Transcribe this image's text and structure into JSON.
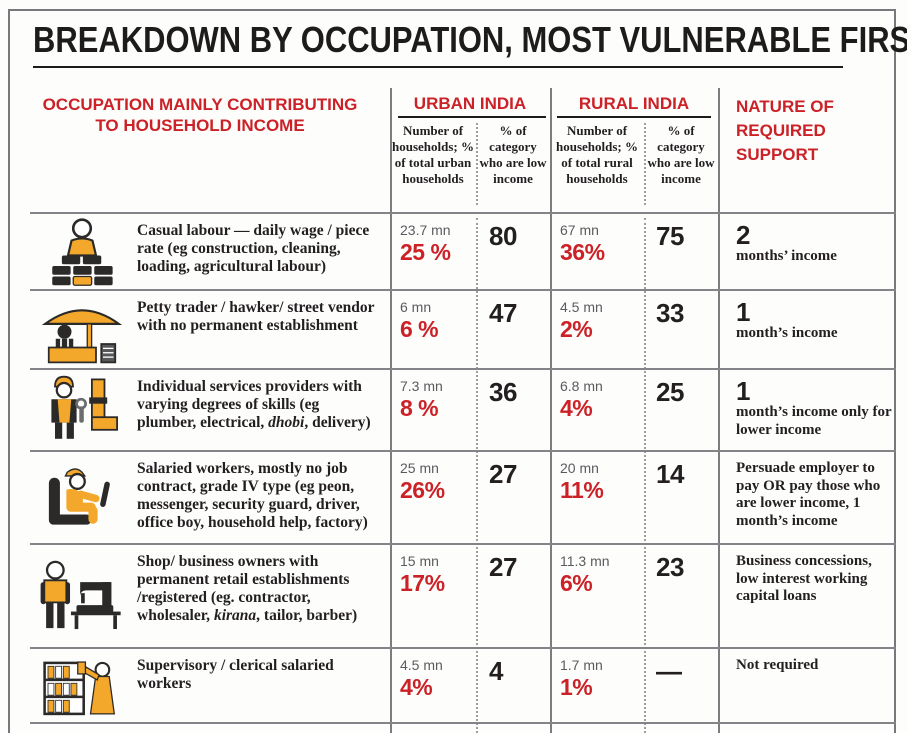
{
  "title": "BREAKDOWN BY OCCUPATION, MOST VULNERABLE FIRST",
  "colors": {
    "accent_red": "#cb2127",
    "icon_orange": "#f3a72b",
    "ink": "#231f20",
    "muted_gray": "#5a5b5e",
    "grid_gray": "#838487"
  },
  "columns": {
    "occupation": "OCCUPATION MAINLY CONTRIBUTING TO HOUSEHOLD INCOME",
    "urban": {
      "label": "URBAN INDIA",
      "households": "Number of households; % of total urban households",
      "low_income": "% of category who are low income"
    },
    "rural": {
      "label": "RURAL INDIA",
      "households": "Number of households; % of total rural households",
      "low_income": "% of category who are low income"
    },
    "support": "NATURE OF REQUIRED SUPPORT"
  },
  "rows": [
    {
      "icon": "construction-worker-icon",
      "occupation": [
        {
          "t": "Casual labour — daily wage / piece rate (eg construction, cleaning, loading, agricultural labour)"
        }
      ],
      "urban": {
        "households": "23.7 mn",
        "pct": "25 %",
        "low_income": "80"
      },
      "rural": {
        "households": "67 mn",
        "pct": "36%",
        "low_income": "75"
      },
      "support": {
        "big": "2",
        "text": "months’ income"
      }
    },
    {
      "icon": "street-vendor-icon",
      "occupation": [
        {
          "t": "Petty trader / hawker/ street vendor with no permanent establishment"
        }
      ],
      "urban": {
        "households": "6 mn",
        "pct": "6 %",
        "low_income": "47"
      },
      "rural": {
        "households": "4.5 mn",
        "pct": "2%",
        "low_income": "33"
      },
      "support": {
        "big": "1",
        "text": "month’s income"
      }
    },
    {
      "icon": "plumber-icon",
      "occupation": [
        {
          "t": "Individual services providers with varying degrees of skills (eg plumber, electrical, "
        },
        {
          "t": "dhobi",
          "i": true
        },
        {
          "t": ", delivery)"
        }
      ],
      "urban": {
        "households": "7.3 mn",
        "pct": "8 %",
        "low_income": "36"
      },
      "rural": {
        "households": "6.8 mn",
        "pct": "4%",
        "low_income": "25"
      },
      "support": {
        "big": "1",
        "text": "month’s income only for lower income"
      }
    },
    {
      "icon": "driver-icon",
      "occupation": [
        {
          "t": "Salaried workers, mostly no job contract, grade IV type (eg peon, messenger, security guard, driver, office boy, household help, factory)"
        }
      ],
      "urban": {
        "households": "25 mn",
        "pct": "26%",
        "low_income": "27"
      },
      "rural": {
        "households": "20 mn",
        "pct": "11%",
        "low_income": "14"
      },
      "support": {
        "big": "",
        "text": "Persuade employer to pay OR pay those who are lower income, 1 month’s income"
      }
    },
    {
      "icon": "tailor-icon",
      "occupation": [
        {
          "t": "Shop/ business owners with permanent retail establishments /registered (eg. contractor, wholesaler, "
        },
        {
          "t": "kirana",
          "i": true
        },
        {
          "t": ", tailor, barber)"
        }
      ],
      "urban": {
        "households": "15 mn",
        "pct": "17%",
        "low_income": "27"
      },
      "rural": {
        "households": "11.3 mn",
        "pct": "6%",
        "low_income": "23"
      },
      "support": {
        "big": "",
        "text": "Business concessions, low interest working capital loans"
      }
    },
    {
      "icon": "clerk-icon",
      "occupation": [
        {
          "t": "Supervisory / clerical salaried workers"
        }
      ],
      "urban": {
        "households": "4.5 mn",
        "pct": "4%",
        "low_income": "4"
      },
      "rural": {
        "households": "1.7 mn",
        "pct": "1%",
        "low_income": "—"
      },
      "support": {
        "big": "",
        "text": "Not required"
      }
    }
  ],
  "chart_data": {
    "type": "table",
    "title": "BREAKDOWN BY OCCUPATION, MOST VULNERABLE FIRST",
    "columns": [
      "Occupation mainly contributing to household income",
      "Urban India — Number of households; % of total urban households",
      "Urban India — % of category who are low income",
      "Rural India — Number of households; % of total rural households",
      "Rural India — % of category who are low income",
      "Nature of required support"
    ],
    "rows": [
      [
        "Casual labour — daily wage / piece rate (eg construction, cleaning, loading, agricultural labour)",
        "23.7 mn; 25 %",
        "80",
        "67 mn; 36%",
        "75",
        "2 months’ income"
      ],
      [
        "Petty trader / hawker/ street vendor with no permanent establishment",
        "6 mn; 6 %",
        "47",
        "4.5 mn; 2%",
        "33",
        "1 month’s income"
      ],
      [
        "Individual services providers with varying degrees of skills (eg plumber, electrical, dhobi, delivery)",
        "7.3 mn; 8 %",
        "36",
        "6.8 mn; 4%",
        "25",
        "1 month’s income only for lower income"
      ],
      [
        "Salaried workers, mostly no job contract, grade IV type (eg peon, messenger, security guard, driver, office boy, household help, factory)",
        "25 mn; 26%",
        "27",
        "20 mn; 11%",
        "14",
        "Persuade employer to pay OR pay those who are lower income, 1 month’s income"
      ],
      [
        "Shop/ business owners with permanent retail establishments /registered (eg. contractor, wholesaler, kirana, tailor, barber)",
        "15 mn; 17%",
        "27",
        "11.3 mn; 6%",
        "23",
        "Business concessions, low interest working capital loans"
      ],
      [
        "Supervisory / clerical salaried workers",
        "4.5 mn; 4%",
        "4",
        "1.7 mn; 1%",
        "—",
        "Not required"
      ]
    ]
  }
}
